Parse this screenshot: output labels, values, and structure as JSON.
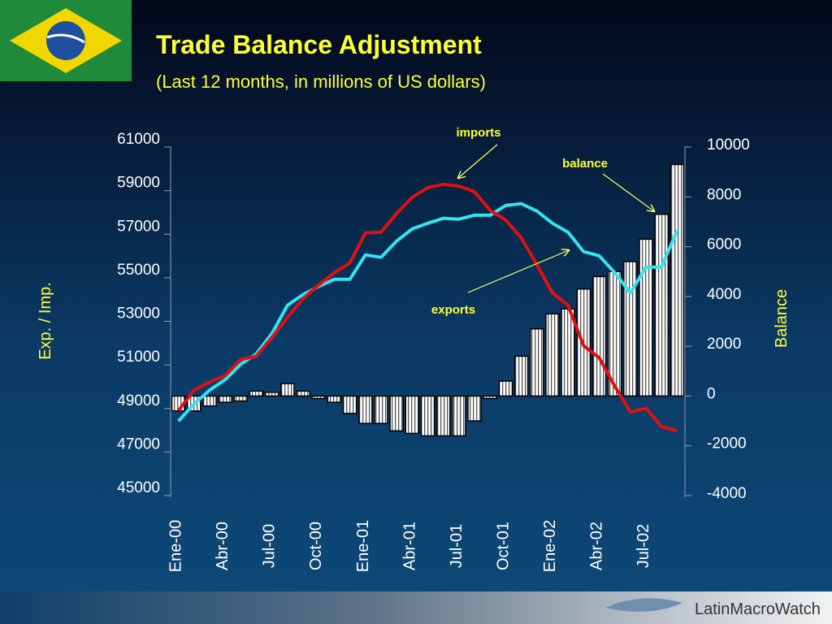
{
  "title": "Trade Balance Adjustment",
  "subtitle": "(Last 12 months, in millions of US dollars)",
  "logo": {
    "text": "LatinMacroWatch"
  },
  "chart_data": {
    "type": "combo",
    "categories": [
      "Ene-00",
      null,
      null,
      "Abr-00",
      null,
      null,
      "Jul-00",
      null,
      null,
      "Oct-00",
      null,
      null,
      "Ene-01",
      null,
      null,
      "Abr-01",
      null,
      null,
      "Jul-01",
      null,
      null,
      "Oct-01",
      null,
      null,
      "Ene-02",
      null,
      null,
      "Abr-02",
      null,
      null,
      "Jul-02",
      null,
      null
    ],
    "ylabel": "Exp. / Imp.",
    "y2label": "Balance",
    "ylim": [
      45000,
      61000
    ],
    "yticks": [
      45000,
      47000,
      49000,
      51000,
      53000,
      55000,
      57000,
      59000,
      61000
    ],
    "y2lim": [
      -4000,
      10000
    ],
    "y2ticks": [
      -4000,
      -2000,
      0,
      2000,
      4000,
      6000,
      8000,
      10000
    ],
    "series": [
      {
        "name": "exports",
        "type": "line",
        "color": "#33e3f2",
        "axis": "y",
        "values": [
          48420,
          49200,
          49840,
          50320,
          51030,
          51510,
          52440,
          53740,
          54230,
          54600,
          54930,
          54930,
          56050,
          55940,
          56680,
          57240,
          57500,
          57730,
          57690,
          57870,
          57870,
          58320,
          58400,
          58060,
          57500,
          57090,
          56200,
          56010,
          55230,
          54300,
          55490,
          55490,
          57170
        ]
      },
      {
        "name": "imports",
        "type": "line",
        "color": "#e01010",
        "axis": "y",
        "values": [
          48900,
          49840,
          50210,
          50510,
          51250,
          51400,
          52260,
          53190,
          54040,
          54670,
          55230,
          55680,
          57060,
          57090,
          57950,
          58690,
          59140,
          59290,
          59210,
          58950,
          58100,
          57650,
          56830,
          55600,
          54300,
          53740,
          51880,
          51330,
          50020,
          48830,
          49020,
          48160,
          47980
        ]
      },
      {
        "name": "balance",
        "type": "bar",
        "color": "#ffffff",
        "axis": "y2",
        "values": [
          -600,
          -600,
          -400,
          -250,
          -200,
          200,
          150,
          500,
          200,
          -100,
          -250,
          -700,
          -1100,
          -1100,
          -1400,
          -1500,
          -1600,
          -1600,
          -1600,
          -1000,
          -100,
          600,
          1600,
          2700,
          3300,
          3500,
          4300,
          4800,
          5000,
          5400,
          6300,
          7300,
          9300
        ]
      }
    ]
  }
}
